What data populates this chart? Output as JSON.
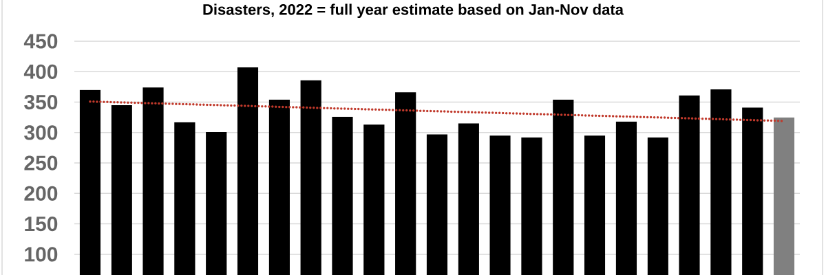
{
  "chart_data": {
    "type": "bar",
    "title": "Disasters, 2022 = full year estimate based on Jan-Nov data",
    "categories": [
      null,
      null,
      null,
      null,
      null,
      null,
      null,
      null,
      null,
      null,
      null,
      null,
      null,
      null,
      null,
      null,
      null,
      null,
      null,
      null,
      null,
      null,
      null
    ],
    "series": [
      {
        "values": [
          370,
          345,
          374,
          317,
          301,
          407,
          354,
          386,
          326,
          313,
          366,
          297,
          315,
          295,
          292,
          354,
          295,
          318,
          292,
          361,
          371,
          341,
          325
        ],
        "colors": [
          "#000000",
          "#000000",
          "#000000",
          "#000000",
          "#000000",
          "#000000",
          "#000000",
          "#000000",
          "#000000",
          "#000000",
          "#000000",
          "#000000",
          "#000000",
          "#000000",
          "#000000",
          "#000000",
          "#000000",
          "#000000",
          "#000000",
          "#000000",
          "#000000",
          "#000000",
          "#808080"
        ]
      },
      {
        "type": "line",
        "color": "#c0392b",
        "line_style": "dotted",
        "values": [
          351,
          null,
          null,
          null,
          null,
          null,
          null,
          null,
          null,
          null,
          null,
          null,
          null,
          null,
          null,
          null,
          null,
          null,
          null,
          null,
          null,
          null,
          319
        ]
      }
    ],
    "ylim": [
      66,
      450
    ],
    "yticks": [
      100,
      150,
      200,
      250,
      300,
      350,
      400,
      450
    ],
    "grid": "y",
    "tick_labels": "y"
  }
}
